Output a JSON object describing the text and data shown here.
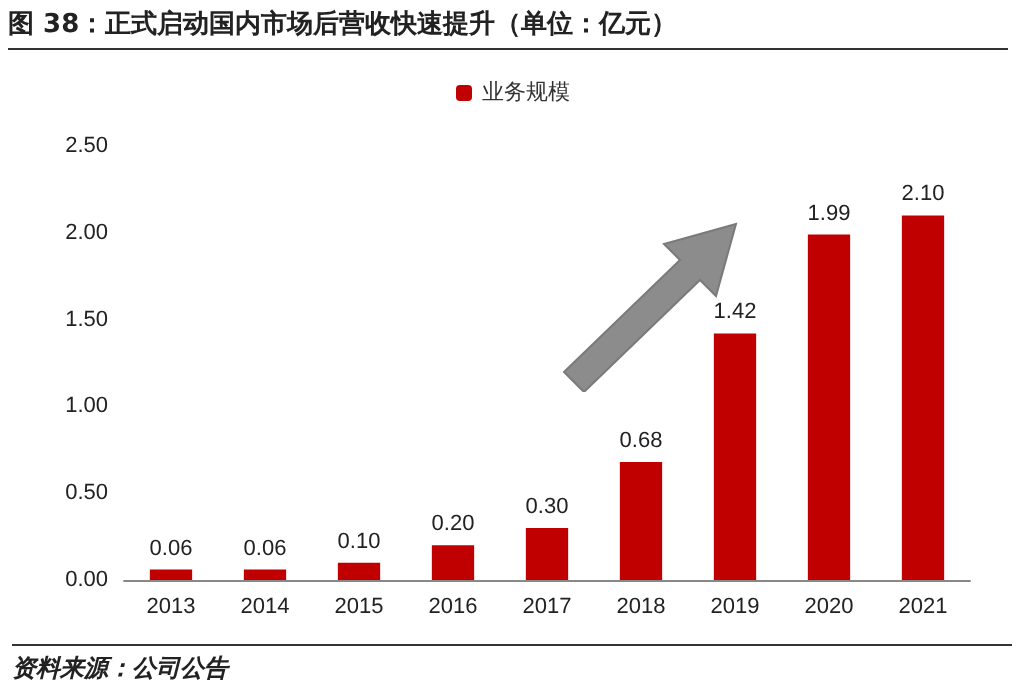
{
  "chart_data": {
    "type": "bar",
    "title": "图 38：正式启动国内市场后营收快速提升（单位：亿元）",
    "categories": [
      "2013",
      "2014",
      "2015",
      "2016",
      "2017",
      "2018",
      "2019",
      "2020",
      "2021"
    ],
    "series": [
      {
        "name": "业务规模",
        "color": "#c00000",
        "values": [
          0.06,
          0.06,
          0.1,
          0.2,
          0.3,
          0.68,
          1.42,
          1.99,
          2.1
        ],
        "value_labels": [
          "0.06",
          "0.06",
          "0.10",
          "0.20",
          "0.30",
          "0.68",
          "1.42",
          "1.99",
          "2.10"
        ]
      }
    ],
    "ylim": [
      0,
      2.5
    ],
    "yticks": [
      {
        "value": 0,
        "label": "0.00"
      },
      {
        "value": 0.5,
        "label": "0.50"
      },
      {
        "value": 1,
        "label": "1.00"
      },
      {
        "value": 1.5,
        "label": "1.50"
      },
      {
        "value": 2,
        "label": "2.00"
      },
      {
        "value": 2.5,
        "label": "2.50"
      }
    ],
    "grid": false,
    "legend": "top",
    "annotations": [
      "资料来源：公司公告"
    ]
  }
}
